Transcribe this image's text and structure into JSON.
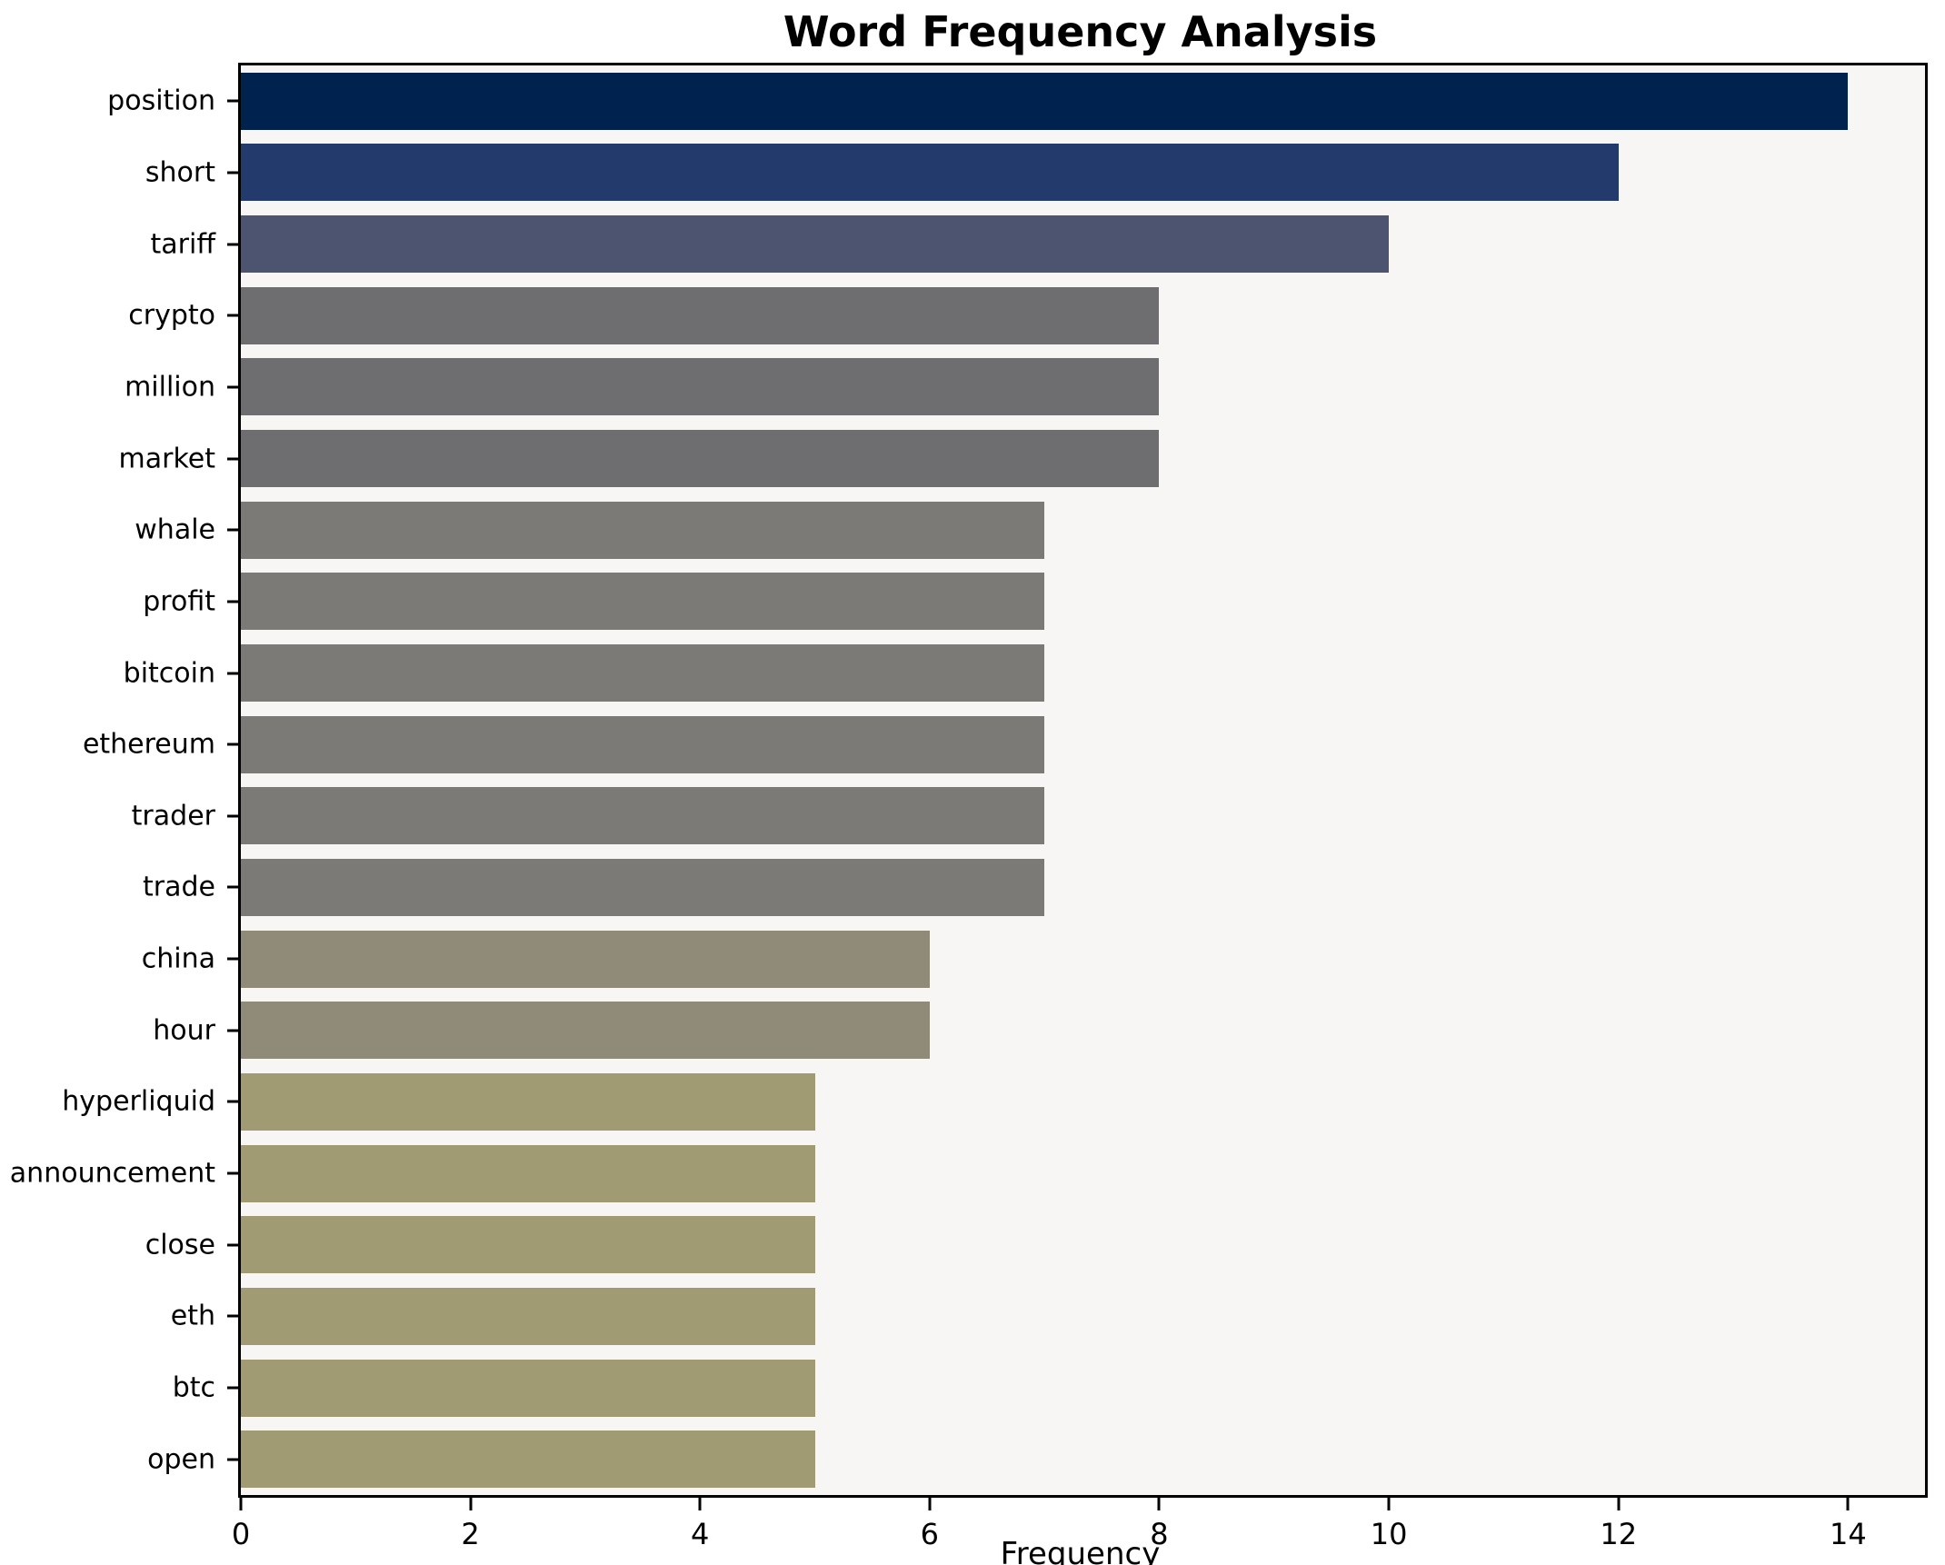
{
  "title": "Word Frequency Analysis",
  "xlabel": "Frequency",
  "chart_data": {
    "type": "bar",
    "orientation": "horizontal",
    "title": "Word Frequency Analysis",
    "xlabel": "Frequency",
    "ylabel": "",
    "categories": [
      "position",
      "short",
      "tariff",
      "crypto",
      "million",
      "market",
      "whale",
      "profit",
      "bitcoin",
      "ethereum",
      "trader",
      "trade",
      "china",
      "hour",
      "hyperliquid",
      "announcement",
      "close",
      "eth",
      "btc",
      "open"
    ],
    "values": [
      14,
      12,
      10,
      8,
      8,
      8,
      7,
      7,
      7,
      7,
      7,
      7,
      6,
      6,
      5,
      5,
      5,
      5,
      5,
      5
    ],
    "bar_colors": [
      "#00224e",
      "#233a6c",
      "#4c5470",
      "#6e6e70",
      "#6e6e70",
      "#6e6e70",
      "#7b7a76",
      "#7b7a76",
      "#7b7a76",
      "#7b7a76",
      "#7b7a76",
      "#7b7a76",
      "#908a78",
      "#908a78",
      "#a19b73",
      "#a19b73",
      "#a19b73",
      "#a19b73",
      "#a19b73",
      "#a19b73"
    ],
    "x_ticks": [
      0,
      2,
      4,
      6,
      8,
      10,
      12,
      14
    ],
    "xlim": [
      0,
      14.67
    ],
    "grid": false,
    "legend": "none",
    "plot_background": "#f7f6f4",
    "figure_background": "#ffffff",
    "spine_color": "#000000"
  },
  "layout_hints": {
    "colormap": "cividis"
  }
}
